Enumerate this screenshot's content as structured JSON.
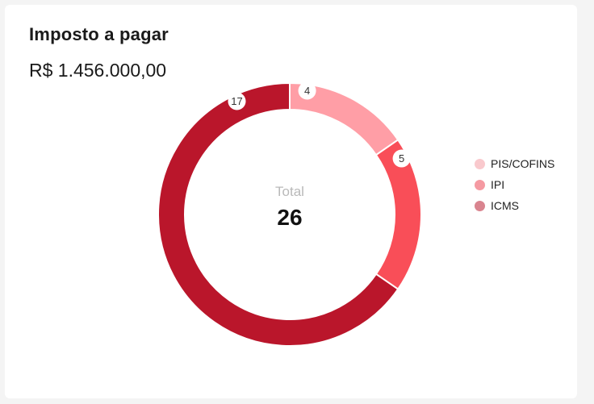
{
  "card": {
    "title": "Imposto a pagar",
    "amount": "R$ 1.456.000,00"
  },
  "chart_data": {
    "type": "pie",
    "variant": "donut",
    "start_angle_deg": 0,
    "categories": [
      "PIS/COFINS",
      "IPI",
      "ICMS"
    ],
    "values": [
      4,
      5,
      17
    ],
    "colors": [
      "#FF9EA6",
      "#F94E58",
      "#BA162B"
    ],
    "legend_colors": [
      "#F9C9CD",
      "#F59AA2",
      "#D9848F"
    ],
    "legend_position": "right",
    "center_label": "Total",
    "center_value": "26"
  }
}
